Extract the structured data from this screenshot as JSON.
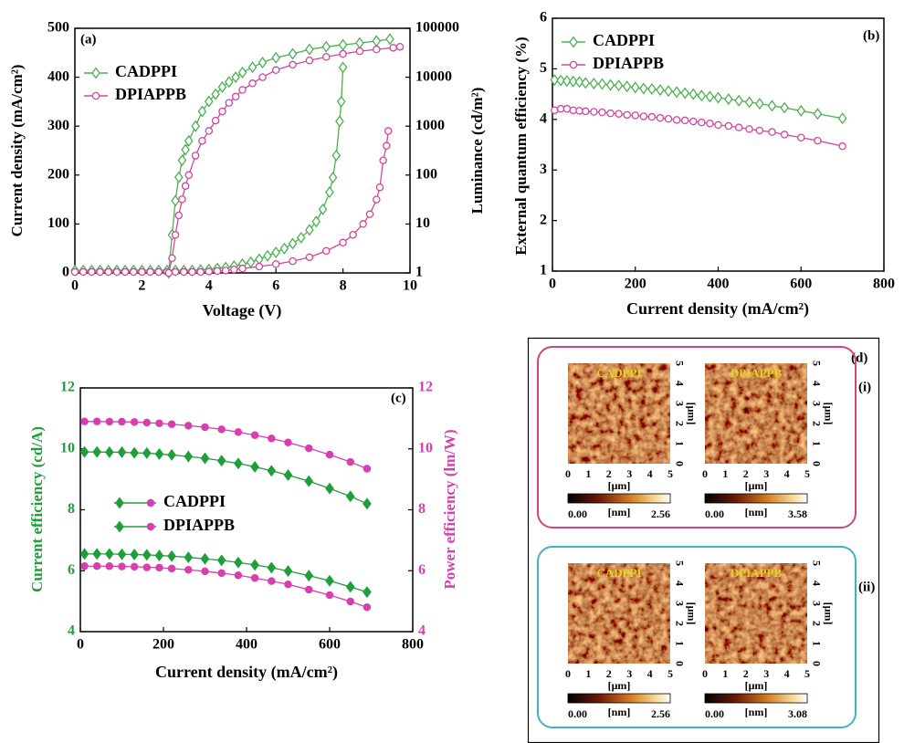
{
  "chart_data": [
    {
      "type": "line",
      "label": "(a)",
      "xlabel": "Voltage (V)",
      "ylabel": "Current density (mA/cm²)",
      "y2label": "Luminance (cd/m²)",
      "xlim": [
        0,
        10
      ],
      "xticks": [
        0,
        2,
        4,
        6,
        8,
        10
      ],
      "ylim": [
        0,
        500
      ],
      "yticks": [
        0,
        100,
        200,
        300,
        400,
        500
      ],
      "y2lim": [
        1,
        100000
      ],
      "y2ticks": [
        1,
        10,
        100,
        1000,
        10000,
        100000
      ],
      "y2scale": "log",
      "legend": "upper left",
      "series": [
        {
          "name": "CADPPI",
          "color": "#4cb050",
          "marker": "diamond-open",
          "x": [
            0,
            0.25,
            0.5,
            0.75,
            1,
            1.25,
            1.5,
            1.75,
            2,
            2.25,
            2.5,
            2.75,
            3,
            3.25,
            3.5,
            3.75,
            4,
            4.25,
            4.5,
            4.75,
            5,
            5.25,
            5.5,
            5.75,
            6,
            6.25,
            6.5,
            6.75,
            7,
            7.2,
            7.4,
            7.6,
            7.7,
            7.8,
            7.9,
            7.95,
            8.0
          ],
          "values": [
            5,
            5,
            5,
            5,
            5,
            5,
            5,
            5,
            5,
            5,
            5,
            5,
            5,
            5,
            5,
            6,
            7,
            9,
            11,
            14,
            18,
            22,
            28,
            35,
            42,
            50,
            60,
            72,
            88,
            105,
            130,
            165,
            195,
            240,
            310,
            350,
            420
          ]
        },
        {
          "name": "DPIAPPB",
          "color": "#d2469b",
          "marker": "circle-open",
          "x": [
            0,
            0.25,
            0.5,
            0.75,
            1,
            1.25,
            1.5,
            1.75,
            2,
            2.25,
            2.5,
            2.75,
            3,
            3.25,
            3.5,
            3.75,
            4,
            4.25,
            4.5,
            4.75,
            5,
            5.5,
            6,
            6.5,
            7,
            7.5,
            8,
            8.3,
            8.6,
            8.8,
            9,
            9.1,
            9.2,
            9.3,
            9.35
          ],
          "values": [
            2,
            2,
            2,
            2,
            2,
            2,
            2,
            2,
            2,
            2,
            2,
            2,
            2,
            2,
            2,
            2,
            3,
            4,
            5,
            7,
            9,
            13,
            18,
            24,
            32,
            45,
            62,
            78,
            100,
            120,
            150,
            175,
            230,
            260,
            290
          ]
        },
        {
          "name": "CADPPI",
          "color": "#4cb050",
          "marker": "diamond-open",
          "axis": "y2",
          "x": [
            2.8,
            2.9,
            3.0,
            3.1,
            3.2,
            3.3,
            3.4,
            3.6,
            3.8,
            4.0,
            4.2,
            4.4,
            4.6,
            4.8,
            5.0,
            5.3,
            5.6,
            6.0,
            6.5,
            7.0,
            7.5,
            8.0,
            8.5,
            9.0,
            9.4
          ],
          "values": [
            1,
            6,
            30,
            90,
            200,
            330,
            500,
            1000,
            2000,
            3200,
            4500,
            6300,
            8000,
            10000,
            12500,
            16000,
            20000,
            25000,
            30000,
            37000,
            42000,
            46000,
            50000,
            55000,
            60000
          ]
        },
        {
          "name": "DPIAPPB",
          "color": "#d2469b",
          "marker": "circle-open",
          "axis": "y2",
          "x": [
            2.8,
            2.9,
            3.0,
            3.1,
            3.2,
            3.3,
            3.4,
            3.6,
            3.8,
            4.0,
            4.2,
            4.4,
            4.6,
            4.8,
            5.0,
            5.3,
            5.6,
            6.0,
            6.5,
            7.0,
            7.5,
            8.0,
            8.5,
            9.0,
            9.5,
            9.7
          ],
          "values": [
            1,
            2,
            6,
            15,
            32,
            60,
            100,
            250,
            500,
            800,
            1300,
            2000,
            3000,
            4000,
            5500,
            7500,
            10000,
            14000,
            18000,
            22000,
            26000,
            30000,
            34000,
            37000,
            40000,
            42000
          ]
        }
      ]
    },
    {
      "type": "line",
      "label": "(b)",
      "xlabel": "Current density (mA/cm²)",
      "ylabel": "External quantum efficiency (%)",
      "xlim": [
        0,
        800
      ],
      "xticks": [
        0,
        200,
        400,
        600,
        800
      ],
      "ylim": [
        1,
        6
      ],
      "yticks": [
        1,
        2,
        3,
        4,
        5,
        6
      ],
      "legend": "upper left",
      "x": [
        5,
        20,
        35,
        50,
        65,
        80,
        100,
        120,
        140,
        160,
        180,
        200,
        220,
        240,
        260,
        280,
        300,
        320,
        340,
        360,
        380,
        400,
        425,
        450,
        475,
        500,
        530,
        560,
        600,
        640,
        700
      ],
      "series": [
        {
          "name": "CADPPI",
          "color": "#4cb050",
          "marker": "diamond-open",
          "values": [
            4.78,
            4.77,
            4.76,
            4.75,
            4.74,
            4.72,
            4.71,
            4.7,
            4.68,
            4.67,
            4.65,
            4.63,
            4.61,
            4.6,
            4.58,
            4.56,
            4.54,
            4.52,
            4.5,
            4.47,
            4.45,
            4.43,
            4.4,
            4.37,
            4.34,
            4.31,
            4.27,
            4.23,
            4.17,
            4.11,
            4.02
          ]
        },
        {
          "name": "DPIAPPB",
          "color": "#d2469b",
          "marker": "circle-open",
          "values": [
            4.18,
            4.21,
            4.21,
            4.18,
            4.17,
            4.16,
            4.15,
            4.14,
            4.12,
            4.11,
            4.09,
            4.08,
            4.06,
            4.05,
            4.03,
            4.01,
            3.99,
            3.98,
            3.96,
            3.94,
            3.92,
            3.89,
            3.87,
            3.84,
            3.81,
            3.78,
            3.75,
            3.7,
            3.64,
            3.58,
            3.47
          ]
        }
      ]
    },
    {
      "type": "line",
      "label": "(c)",
      "xlabel": "Current density (mA/cm²)",
      "ylabel": "Current efficiency (cd/A)",
      "y2label": "Power efficiency (lm/W)",
      "xlim": [
        0,
        800
      ],
      "xticks": [
        0,
        200,
        400,
        600,
        800
      ],
      "ylim": [
        4,
        12
      ],
      "yticks": [
        4,
        6,
        8,
        10,
        12
      ],
      "y_axis_color": "#1f9e3a",
      "y2lim": [
        4,
        12
      ],
      "y2ticks": [
        4,
        6,
        8,
        10,
        12
      ],
      "y2_axis_color": "#d83fae",
      "legend": "center left",
      "x": [
        10,
        40,
        70,
        100,
        130,
        160,
        190,
        220,
        260,
        300,
        340,
        380,
        420,
        460,
        500,
        550,
        600,
        650,
        690
      ],
      "series": [
        {
          "name": "CADPPI",
          "color": "#1f9e3a",
          "marker": "diamond",
          "values": [
            9.9,
            9.9,
            9.89,
            9.89,
            9.87,
            9.86,
            9.83,
            9.8,
            9.75,
            9.69,
            9.61,
            9.52,
            9.41,
            9.28,
            9.14,
            8.94,
            8.7,
            8.44,
            8.2
          ]
        },
        {
          "name": "DPIAPPB",
          "color": "#1f9e3a",
          "marker": "diamond",
          "values": [
            6.55,
            6.55,
            6.55,
            6.54,
            6.53,
            6.52,
            6.5,
            6.48,
            6.44,
            6.39,
            6.34,
            6.27,
            6.19,
            6.1,
            5.99,
            5.84,
            5.67,
            5.47,
            5.3
          ]
        },
        {
          "name": "CADPPI",
          "color": "#d83fae",
          "marker": "circle",
          "axis": "y2",
          "values": [
            10.9,
            10.9,
            10.89,
            10.89,
            10.88,
            10.86,
            10.84,
            10.81,
            10.76,
            10.71,
            10.64,
            10.55,
            10.45,
            10.34,
            10.21,
            10.02,
            9.81,
            9.57,
            9.35
          ]
        },
        {
          "name": "DPIAPPB",
          "color": "#d83fae",
          "marker": "circle",
          "axis": "y2",
          "values": [
            6.15,
            6.15,
            6.15,
            6.14,
            6.13,
            6.11,
            6.1,
            6.07,
            6.03,
            5.98,
            5.92,
            5.85,
            5.76,
            5.66,
            5.55,
            5.38,
            5.2,
            4.99,
            4.8
          ]
        }
      ]
    }
  ],
  "panel_d": {
    "label": "(d)",
    "axis_ticks": [
      0,
      1,
      2,
      3,
      4,
      5
    ],
    "axis_unit": "[μm]",
    "rows": [
      {
        "label": "(i)",
        "images": [
          {
            "title": "CADPPI",
            "scale_min": "0.00",
            "scale_unit": "[nm]",
            "scale_max": "2.56"
          },
          {
            "title": "DPIAPPB",
            "scale_min": "0.00",
            "scale_unit": "[nm]",
            "scale_max": "3.58"
          }
        ]
      },
      {
        "label": "(ii)",
        "images": [
          {
            "title": "CADPPI",
            "scale_min": "0.00",
            "scale_unit": "[nm]",
            "scale_max": "2.56"
          },
          {
            "title": "DPIAPPB",
            "scale_min": "0.00",
            "scale_unit": "[nm]",
            "scale_max": "3.08"
          }
        ]
      }
    ]
  }
}
